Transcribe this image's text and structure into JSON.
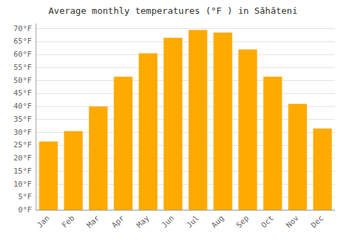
{
  "chart_data": {
    "type": "bar",
    "title": "Average monthly temperatures (°F ) in Săhăteni",
    "categories": [
      "Jan",
      "Feb",
      "Mar",
      "Apr",
      "May",
      "Jun",
      "Jul",
      "Aug",
      "Sep",
      "Oct",
      "Nov",
      "Dec"
    ],
    "values": [
      26.5,
      30.5,
      40.0,
      51.5,
      60.5,
      66.5,
      69.5,
      68.5,
      62.0,
      51.5,
      41.0,
      31.5
    ],
    "color": "#FFAA00",
    "ylim": [
      0,
      72
    ],
    "yticks": [
      {
        "value": 0,
        "label": "0°F"
      },
      {
        "value": 5,
        "label": "5°F"
      },
      {
        "value": 10,
        "label": "10°F"
      },
      {
        "value": 15,
        "label": "15°F"
      },
      {
        "value": 20,
        "label": "20°F"
      },
      {
        "value": 25,
        "label": "25°F"
      },
      {
        "value": 30,
        "label": "30°F"
      },
      {
        "value": 35,
        "label": "35°F"
      },
      {
        "value": 40,
        "label": "40°F"
      },
      {
        "value": 45,
        "label": "45°F"
      },
      {
        "value": 50,
        "label": "50°F"
      },
      {
        "value": 55,
        "label": "55°F"
      },
      {
        "value": 60,
        "label": "60°F"
      },
      {
        "value": 65,
        "label": "65°F"
      },
      {
        "value": 70,
        "label": "70°F"
      }
    ],
    "grid": true
  }
}
